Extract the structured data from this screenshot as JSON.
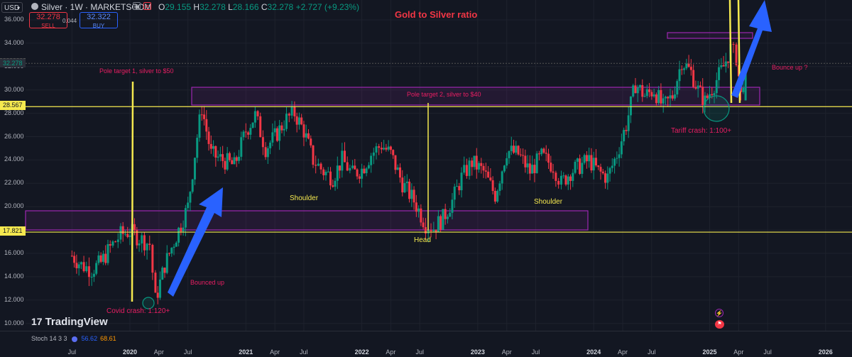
{
  "header": {
    "currency": "USD",
    "symbol": "Silver · 1W · MARKETSCOM",
    "ohlc": {
      "o_label": "O",
      "o": "29.155",
      "h_label": "H",
      "h": "32.278",
      "l_label": "L",
      "l": "28.166",
      "c_label": "C",
      "c": "32.278",
      "change": "+2.727 (+9.23%)"
    },
    "sell_price": "32.278",
    "sell_label": "SELL",
    "buy_price": "32.322",
    "buy_label": "BUY",
    "spread": "0.044"
  },
  "title": "Gold to Silver ratio",
  "annotations": {
    "pole1": "Pole target 1, silver to $50",
    "pole2": "Pole target 2, silver to $40",
    "bounce_q": "Bounce up ?",
    "tariff": "Tariff crash: 1:100+",
    "shoulder_left": "Shoulder",
    "shoulder_right": "Shoulder",
    "head": "Head",
    "bounced_up": "Bounced up",
    "covid": "Covid crash: 1:120+"
  },
  "price_tags": {
    "last": "32.278",
    "upper_line": "28.567",
    "lower_line": "17.821"
  },
  "branding": {
    "logo": "17",
    "name": "TradingView"
  },
  "stoch": {
    "label": "Stoch 14 3 3",
    "k": "56.62",
    "d": "68.61"
  },
  "colors": {
    "up": "#089981",
    "down": "#f23645",
    "yellow": "#f5e94f",
    "purple": "#9c27b0",
    "arrow": "#2962ff",
    "magenta": "#e91e63"
  },
  "chart_data": {
    "type": "candlestick",
    "title": "Gold to Silver ratio",
    "ylim": [
      9.5,
      37.0
    ],
    "y_ticks": [
      "10.000",
      "12.000",
      "14.000",
      "16.000",
      "18.000",
      "20.000",
      "22.000",
      "24.000",
      "26.000",
      "28.000",
      "30.000",
      "32.000",
      "34.000",
      "36.000"
    ],
    "x_ticks": [
      "Jul",
      "2020",
      "Apr",
      "Jul",
      "2021",
      "Apr",
      "Jul",
      "2022",
      "Apr",
      "Jul",
      "2023",
      "Apr",
      "Jul",
      "2024",
      "Apr",
      "Jul",
      "2025",
      "Apr",
      "Jul",
      "2026"
    ],
    "series": [
      {
        "values": [
          [
            2019.5,
            15.8
          ],
          [
            2019.58,
            15.0
          ],
          [
            2019.67,
            14.6
          ],
          [
            2019.75,
            15.2
          ],
          [
            2019.83,
            16.5
          ],
          [
            2019.92,
            17.6
          ],
          [
            2020.0,
            17.9
          ],
          [
            2020.08,
            17.3
          ],
          [
            2020.17,
            16.8
          ],
          [
            2020.22,
            12.0
          ],
          [
            2020.3,
            15.0
          ],
          [
            2020.4,
            17.5
          ],
          [
            2020.5,
            20.0
          ],
          [
            2020.58,
            26.0
          ],
          [
            2020.62,
            28.5
          ],
          [
            2020.7,
            24.5
          ],
          [
            2020.8,
            24.0
          ],
          [
            2020.9,
            23.5
          ],
          [
            2021.0,
            26.5
          ],
          [
            2021.08,
            27.8
          ],
          [
            2021.17,
            25.0
          ],
          [
            2021.25,
            26.0
          ],
          [
            2021.35,
            27.5
          ],
          [
            2021.42,
            28.0
          ],
          [
            2021.5,
            26.5
          ],
          [
            2021.58,
            24.0
          ],
          [
            2021.67,
            23.0
          ],
          [
            2021.75,
            22.5
          ],
          [
            2021.83,
            24.0
          ],
          [
            2021.92,
            22.8
          ],
          [
            2022.0,
            23.2
          ],
          [
            2022.08,
            24.5
          ],
          [
            2022.17,
            25.3
          ],
          [
            2022.25,
            24.5
          ],
          [
            2022.35,
            22.0
          ],
          [
            2022.45,
            20.5
          ],
          [
            2022.55,
            18.5
          ],
          [
            2022.62,
            18.2
          ],
          [
            2022.7,
            19.0
          ],
          [
            2022.78,
            20.5
          ],
          [
            2022.86,
            22.5
          ],
          [
            2022.95,
            23.8
          ],
          [
            2023.05,
            23.0
          ],
          [
            2023.15,
            21.0
          ],
          [
            2023.25,
            24.8
          ],
          [
            2023.35,
            24.5
          ],
          [
            2023.45,
            23.0
          ],
          [
            2023.55,
            24.3
          ],
          [
            2023.65,
            23.5
          ],
          [
            2023.72,
            22.0
          ],
          [
            2023.8,
            23.0
          ],
          [
            2023.88,
            23.5
          ],
          [
            2023.96,
            24.0
          ],
          [
            2024.04,
            23.0
          ],
          [
            2024.12,
            22.5
          ],
          [
            2024.2,
            24.5
          ],
          [
            2024.28,
            27.0
          ],
          [
            2024.36,
            30.5
          ],
          [
            2024.44,
            29.5
          ],
          [
            2024.52,
            30.0
          ],
          [
            2024.6,
            28.5
          ],
          [
            2024.68,
            29.5
          ],
          [
            2024.76,
            32.5
          ],
          [
            2024.84,
            31.5
          ],
          [
            2024.9,
            30.0
          ],
          [
            2024.96,
            29.0
          ],
          [
            2025.04,
            30.5
          ],
          [
            2025.12,
            32.0
          ],
          [
            2025.18,
            33.5
          ],
          [
            2025.23,
            32.8
          ],
          [
            2025.27,
            29.5
          ],
          [
            2025.31,
            32.3
          ]
        ]
      }
    ],
    "horizontal_lines": [
      28.567,
      17.821
    ]
  }
}
